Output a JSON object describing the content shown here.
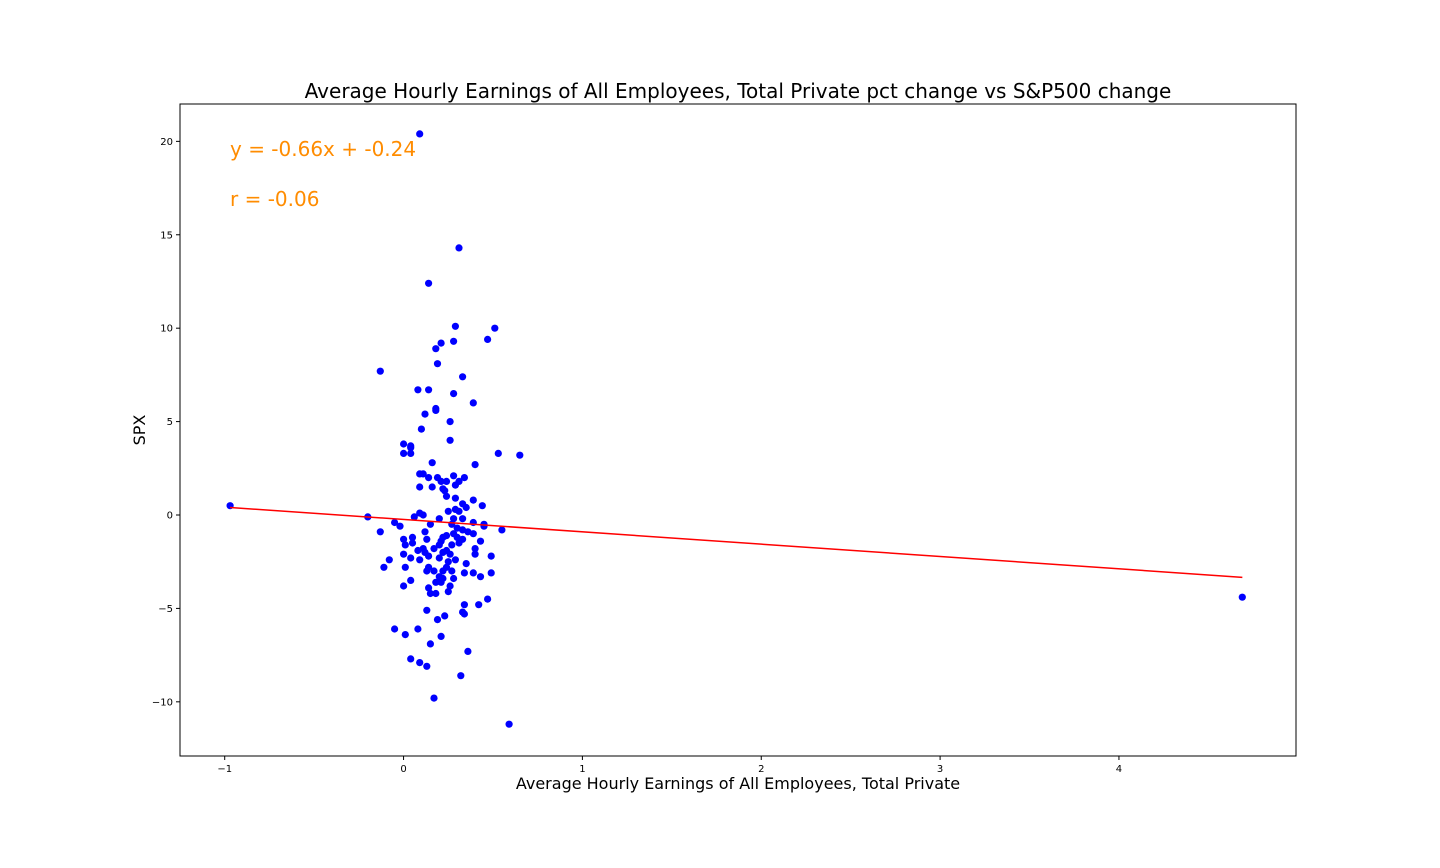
{
  "chart_data": {
    "type": "scatter",
    "title": "Average Hourly Earnings of All Employees, Total Private pct change vs S&P500 change",
    "xlabel": "Average Hourly Earnings of All Employees, Total Private",
    "ylabel": "SPX",
    "xlim": [
      -1.25,
      4.99
    ],
    "ylim": [
      -12.9,
      22.0
    ],
    "xticks": [
      -1,
      0,
      1,
      2,
      3,
      4
    ],
    "yticks": [
      -10,
      -5,
      0,
      5,
      10,
      15,
      20
    ],
    "xtick_labels": [
      "−1",
      "0",
      "1",
      "2",
      "3",
      "4"
    ],
    "ytick_labels": [
      "−10",
      "−5",
      "0",
      "5",
      "10",
      "15",
      "20"
    ],
    "grid": false,
    "annotations": [
      {
        "text": "y = -0.66x + -0.24",
        "x": -0.97,
        "y": 19.3
      },
      {
        "text": "r = -0.06",
        "x": -0.97,
        "y": 16.65
      }
    ],
    "fit": {
      "slope": -0.66,
      "intercept": -0.24,
      "x_range": [
        -0.97,
        4.69
      ]
    },
    "colors": {
      "points": "#0000ff",
      "fit_line": "#ff0000",
      "annotation": "#ff8c00"
    },
    "series": [
      {
        "points": [
          [
            0.09,
            20.4
          ],
          [
            0.31,
            14.3
          ],
          [
            0.14,
            12.4
          ],
          [
            0.29,
            10.1
          ],
          [
            0.51,
            10.0
          ],
          [
            0.47,
            9.4
          ],
          [
            0.28,
            9.3
          ],
          [
            0.21,
            9.2
          ],
          [
            0.18,
            8.9
          ],
          [
            0.19,
            8.1
          ],
          [
            -0.13,
            7.7
          ],
          [
            0.33,
            7.4
          ],
          [
            0.08,
            6.7
          ],
          [
            0.14,
            6.7
          ],
          [
            0.28,
            6.5
          ],
          [
            0.39,
            6.0
          ],
          [
            0.18,
            5.7
          ],
          [
            0.18,
            5.6
          ],
          [
            0.12,
            5.4
          ],
          [
            0.26,
            5.0
          ],
          [
            0.1,
            4.6
          ],
          [
            0.26,
            4.0
          ],
          [
            0.0,
            3.8
          ],
          [
            0.04,
            3.7
          ],
          [
            0.04,
            3.6
          ],
          [
            0.0,
            3.3
          ],
          [
            0.04,
            3.3
          ],
          [
            0.53,
            3.3
          ],
          [
            0.65,
            3.2
          ],
          [
            0.16,
            2.8
          ],
          [
            0.4,
            2.7
          ],
          [
            0.09,
            2.2
          ],
          [
            0.11,
            2.2
          ],
          [
            0.28,
            2.1
          ],
          [
            0.14,
            2.0
          ],
          [
            0.19,
            2.0
          ],
          [
            0.34,
            2.0
          ],
          [
            0.21,
            1.8
          ],
          [
            0.24,
            1.8
          ],
          [
            0.31,
            1.8
          ],
          [
            0.29,
            1.6
          ],
          [
            0.09,
            1.5
          ],
          [
            0.16,
            1.5
          ],
          [
            0.22,
            1.4
          ],
          [
            0.23,
            1.3
          ],
          [
            0.24,
            1.0
          ],
          [
            0.29,
            0.9
          ],
          [
            0.39,
            0.8
          ],
          [
            0.33,
            0.6
          ],
          [
            -0.97,
            0.5
          ],
          [
            0.44,
            0.5
          ],
          [
            0.29,
            0.3
          ],
          [
            0.35,
            0.4
          ],
          [
            0.31,
            0.2
          ],
          [
            0.25,
            0.2
          ],
          [
            0.09,
            0.1
          ],
          [
            0.11,
            0.0
          ],
          [
            0.06,
            -0.1
          ],
          [
            0.2,
            -0.2
          ],
          [
            0.28,
            -0.2
          ],
          [
            0.33,
            -0.2
          ],
          [
            -0.2,
            -0.1
          ],
          [
            0.39,
            -0.4
          ],
          [
            0.45,
            -0.5
          ],
          [
            -0.05,
            -0.4
          ],
          [
            -0.02,
            -0.6
          ],
          [
            0.15,
            -0.5
          ],
          [
            0.27,
            -0.5
          ],
          [
            0.45,
            -0.6
          ],
          [
            0.3,
            -0.7
          ],
          [
            0.33,
            -0.8
          ],
          [
            0.36,
            -0.9
          ],
          [
            -0.13,
            -0.9
          ],
          [
            0.12,
            -0.9
          ],
          [
            0.28,
            -1.0
          ],
          [
            0.55,
            -0.8
          ],
          [
            0.39,
            -1.0
          ],
          [
            0.24,
            -1.1
          ],
          [
            0.3,
            -1.2
          ],
          [
            0.05,
            -1.2
          ],
          [
            0.22,
            -1.2
          ],
          [
            0.33,
            -1.3
          ],
          [
            0.43,
            -1.4
          ],
          [
            0.0,
            -1.3
          ],
          [
            0.13,
            -1.3
          ],
          [
            0.21,
            -1.4
          ],
          [
            0.31,
            -1.5
          ],
          [
            0.2,
            -1.6
          ],
          [
            0.05,
            -1.5
          ],
          [
            0.01,
            -1.6
          ],
          [
            0.27,
            -1.6
          ],
          [
            0.4,
            -1.8
          ],
          [
            0.11,
            -1.8
          ],
          [
            0.17,
            -1.8
          ],
          [
            0.24,
            -1.9
          ],
          [
            0.22,
            -2.0
          ],
          [
            0.08,
            -1.9
          ],
          [
            0.12,
            -2.0
          ],
          [
            0.26,
            -2.1
          ],
          [
            0.4,
            -2.1
          ],
          [
            0.0,
            -2.1
          ],
          [
            0.49,
            -2.2
          ],
          [
            0.14,
            -2.2
          ],
          [
            0.2,
            -2.3
          ],
          [
            0.04,
            -2.3
          ],
          [
            0.29,
            -2.4
          ],
          [
            0.09,
            -2.4
          ],
          [
            -0.08,
            -2.4
          ],
          [
            0.25,
            -2.5
          ],
          [
            0.35,
            -2.6
          ],
          [
            -0.11,
            -2.8
          ],
          [
            0.01,
            -2.8
          ],
          [
            0.14,
            -2.8
          ],
          [
            0.24,
            -2.8
          ],
          [
            0.17,
            -3.0
          ],
          [
            0.22,
            -3.0
          ],
          [
            0.27,
            -3.0
          ],
          [
            0.13,
            -3.0
          ],
          [
            0.34,
            -3.1
          ],
          [
            0.49,
            -3.1
          ],
          [
            0.39,
            -3.1
          ],
          [
            0.2,
            -3.3
          ],
          [
            0.43,
            -3.3
          ],
          [
            0.28,
            -3.4
          ],
          [
            0.22,
            -3.4
          ],
          [
            0.04,
            -3.5
          ],
          [
            0.21,
            -3.6
          ],
          [
            0.18,
            -3.6
          ],
          [
            0.26,
            -3.8
          ],
          [
            0.0,
            -3.8
          ],
          [
            0.14,
            -3.9
          ],
          [
            0.25,
            -4.1
          ],
          [
            0.15,
            -4.2
          ],
          [
            0.18,
            -4.2
          ],
          [
            0.47,
            -4.5
          ],
          [
            0.34,
            -4.8
          ],
          [
            0.42,
            -4.8
          ],
          [
            0.13,
            -5.1
          ],
          [
            0.33,
            -5.2
          ],
          [
            0.34,
            -5.3
          ],
          [
            0.23,
            -5.4
          ],
          [
            0.19,
            -5.6
          ],
          [
            -0.05,
            -6.1
          ],
          [
            0.08,
            -6.1
          ],
          [
            0.01,
            -6.4
          ],
          [
            0.21,
            -6.5
          ],
          [
            0.15,
            -6.9
          ],
          [
            0.36,
            -7.3
          ],
          [
            0.04,
            -7.7
          ],
          [
            0.09,
            -7.9
          ],
          [
            0.13,
            -8.1
          ],
          [
            0.32,
            -8.6
          ],
          [
            0.17,
            -9.8
          ],
          [
            0.59,
            -11.2
          ],
          [
            4.69,
            -4.4
          ]
        ]
      }
    ]
  }
}
